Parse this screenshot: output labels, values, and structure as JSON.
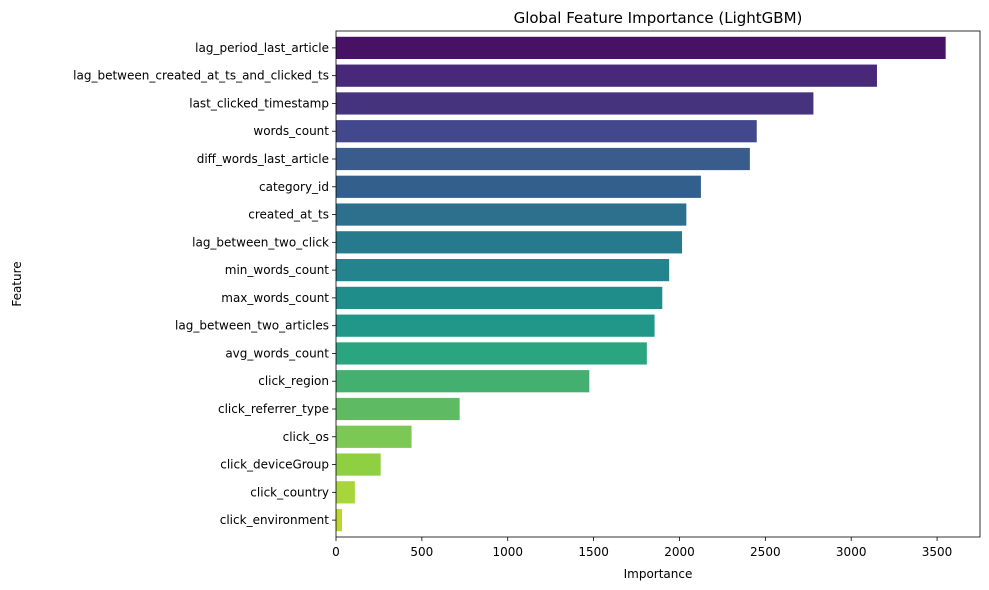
{
  "chart_data": {
    "type": "bar",
    "orientation": "horizontal",
    "title": "Global Feature Importance (LightGBM)",
    "xlabel": "Importance",
    "ylabel": "Feature",
    "xlim": [
      0,
      3750
    ],
    "xticks": [
      0,
      500,
      1000,
      1500,
      2000,
      2500,
      3000,
      3500
    ],
    "grid": false,
    "colormap": "viridis",
    "categories": [
      "lag_period_last_article",
      "lag_between_created_at_ts_and_clicked_ts",
      "last_clicked_timestamp",
      "words_count",
      "diff_words_last_article",
      "category_id",
      "created_at_ts",
      "lag_between_two_click",
      "min_words_count",
      "max_words_count",
      "lag_between_two_articles",
      "avg_words_count",
      "click_region",
      "click_referrer_type",
      "click_os",
      "click_deviceGroup",
      "click_country",
      "click_environment"
    ],
    "values": [
      3550,
      3150,
      2780,
      2450,
      2410,
      2125,
      2040,
      2015,
      1940,
      1900,
      1855,
      1810,
      1475,
      720,
      440,
      260,
      110,
      35
    ],
    "colors": [
      "#471164",
      "#482979",
      "#46337e",
      "#42488b",
      "#3a5c8c",
      "#335f8d",
      "#2d708e",
      "#277a8e",
      "#23848d",
      "#1f8e8b",
      "#21978a",
      "#2ba480",
      "#43b06f",
      "#5fbb63",
      "#7bc854",
      "#8fd043",
      "#a8d53a",
      "#bfd52f"
    ]
  }
}
